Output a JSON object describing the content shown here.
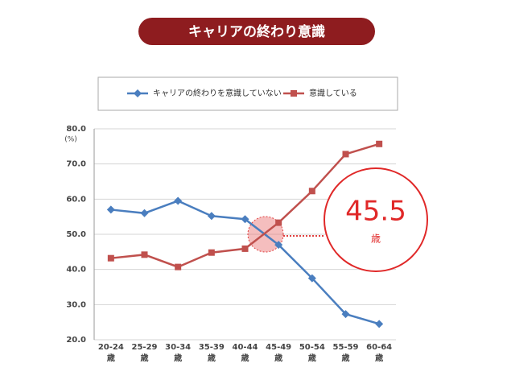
{
  "chart_data": {
    "type": "line",
    "title": "キャリアの終わり意識",
    "y_unit": "(%)",
    "categories": [
      "20-24\n歳",
      "25-29\n歳",
      "30-34\n歳",
      "35-39\n歳",
      "40-44\n歳",
      "45-49\n歳",
      "50-54\n歳",
      "55-59\n歳",
      "60-64\n歳"
    ],
    "series": [
      {
        "name": "キャリアの終わりを意識していない",
        "color": "#4a7ebf",
        "marker": "diamond",
        "values": [
          57.0,
          56.0,
          59.5,
          55.2,
          54.3,
          47.0,
          37.5,
          27.3,
          24.5
        ]
      },
      {
        "name": "意識している",
        "color": "#c0504d",
        "marker": "square",
        "values": [
          43.2,
          44.2,
          40.7,
          44.8,
          45.9,
          53.3,
          62.3,
          72.8,
          75.7
        ]
      }
    ],
    "ylim": [
      20,
      80
    ],
    "yticks": [
      {
        "value": 20,
        "label": "20.0"
      },
      {
        "value": 30,
        "label": "30.0"
      },
      {
        "value": 40,
        "label": "40.0"
      },
      {
        "value": 50,
        "label": "50.0"
      },
      {
        "value": 60,
        "label": "60.0"
      },
      {
        "value": 70,
        "label": "70.0"
      },
      {
        "value": 80,
        "label": "80.0"
      }
    ],
    "grid": true,
    "annotation": {
      "value": "45.5",
      "unit": "歳"
    }
  }
}
